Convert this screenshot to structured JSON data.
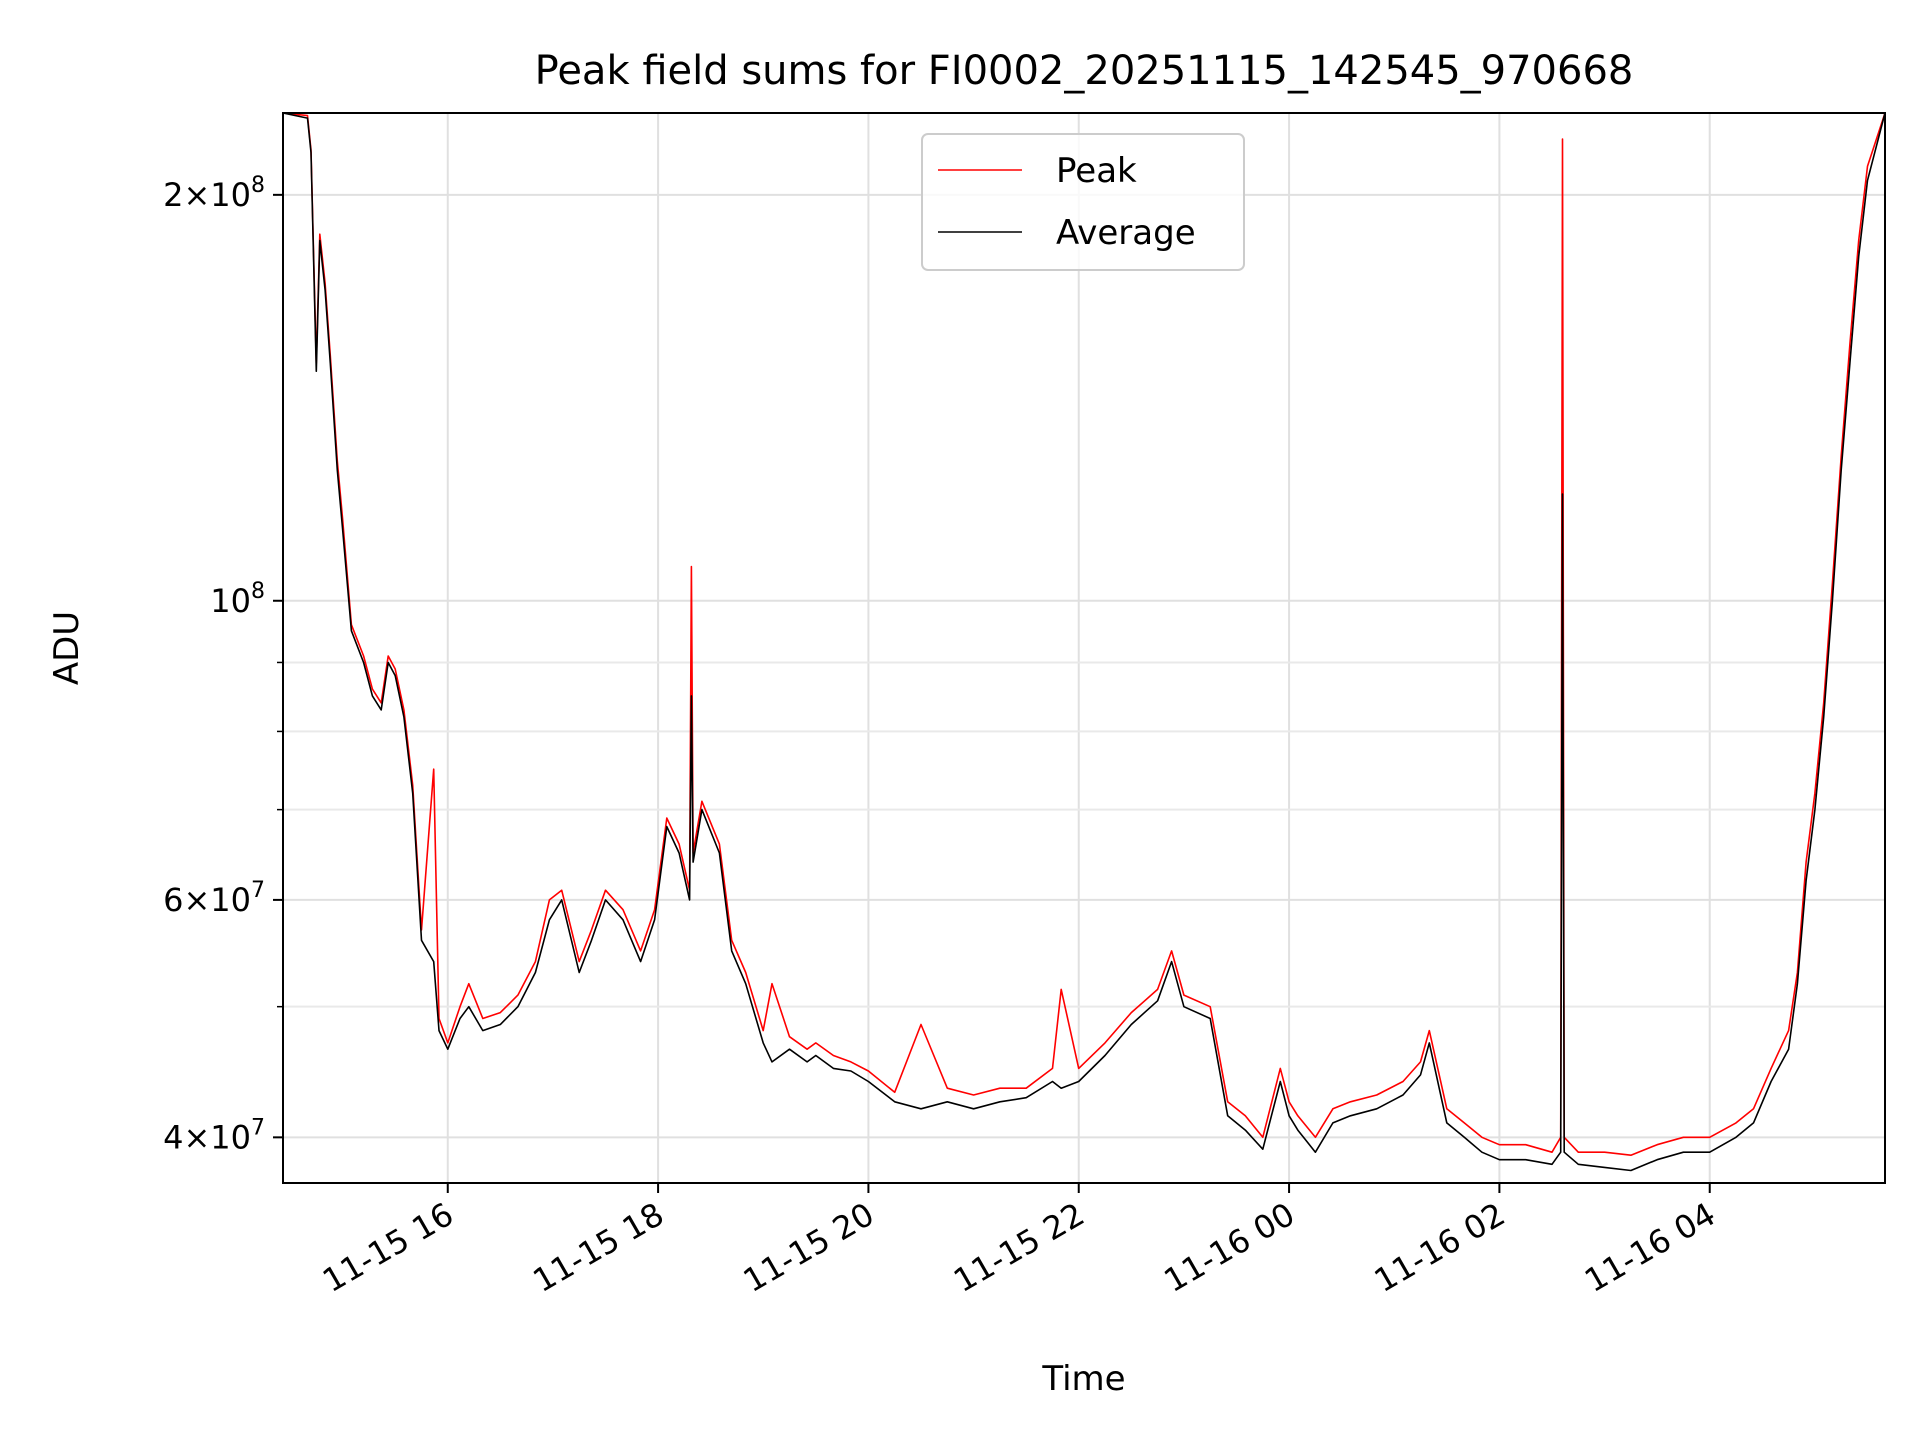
{
  "chart_data": {
    "type": "line",
    "title": "Peak field sums for FI0002_20251115_142545_970668",
    "xlabel": "Time",
    "ylabel": "ADU",
    "yscale": "log",
    "ylim": [
      37000000,
      230000000
    ],
    "xlim": [
      "2025-11-15T14:26",
      "2025-11-16T05:40"
    ],
    "grid": true,
    "legend_placement": "upper center",
    "x_ticks": [
      {
        "value": "2025-11-15T16:00",
        "label": "11-15 16"
      },
      {
        "value": "2025-11-15T18:00",
        "label": "11-15 18"
      },
      {
        "value": "2025-11-15T20:00",
        "label": "11-15 20"
      },
      {
        "value": "2025-11-15T22:00",
        "label": "11-15 22"
      },
      {
        "value": "2025-11-16T00:00",
        "label": "11-16 00"
      },
      {
        "value": "2025-11-16T02:00",
        "label": "11-16 02"
      },
      {
        "value": "2025-11-16T04:00",
        "label": "11-16 04"
      }
    ],
    "y_ticks": [
      {
        "value": 40000000,
        "base": "4",
        "exp": "7"
      },
      {
        "value": 60000000,
        "base": "6",
        "exp": "7"
      },
      {
        "value": 100000000,
        "base": "",
        "exp": "8"
      },
      {
        "value": 200000000,
        "base": "2",
        "exp": "8"
      }
    ],
    "y_minor_ticks": [
      50000000,
      70000000,
      80000000,
      90000000
    ],
    "series": [
      {
        "name": "Peak",
        "color": "#ff0000"
      },
      {
        "name": "Average",
        "color": "#000000"
      }
    ],
    "x": [
      "2025-11-15T14:26",
      "2025-11-15T14:40",
      "2025-11-15T14:42",
      "2025-11-15T14:45",
      "2025-11-15T14:47",
      "2025-11-15T14:50",
      "2025-11-15T14:53",
      "2025-11-15T14:57",
      "2025-11-15T15:00",
      "2025-11-15T15:05",
      "2025-11-15T15:12",
      "2025-11-15T15:17",
      "2025-11-15T15:22",
      "2025-11-15T15:26",
      "2025-11-15T15:30",
      "2025-11-15T15:35",
      "2025-11-15T15:40",
      "2025-11-15T15:45",
      "2025-11-15T15:52",
      "2025-11-15T15:55",
      "2025-11-15T16:00",
      "2025-11-15T16:07",
      "2025-11-15T16:12",
      "2025-11-15T16:20",
      "2025-11-15T16:30",
      "2025-11-15T16:40",
      "2025-11-15T16:50",
      "2025-11-15T16:58",
      "2025-11-15T17:05",
      "2025-11-15T17:15",
      "2025-11-15T17:22",
      "2025-11-15T17:30",
      "2025-11-15T17:40",
      "2025-11-15T17:50",
      "2025-11-15T17:58",
      "2025-11-15T18:05",
      "2025-11-15T18:12",
      "2025-11-15T18:18",
      "2025-11-15T18:19",
      "2025-11-15T18:20",
      "2025-11-15T18:25",
      "2025-11-15T18:35",
      "2025-11-15T18:42",
      "2025-11-15T18:50",
      "2025-11-15T19:00",
      "2025-11-15T19:05",
      "2025-11-15T19:15",
      "2025-11-15T19:25",
      "2025-11-15T19:30",
      "2025-11-15T19:40",
      "2025-11-15T19:50",
      "2025-11-15T20:00",
      "2025-11-15T20:15",
      "2025-11-15T20:30",
      "2025-11-15T20:45",
      "2025-11-15T21:00",
      "2025-11-15T21:15",
      "2025-11-15T21:30",
      "2025-11-15T21:45",
      "2025-11-15T21:50",
      "2025-11-15T22:00",
      "2025-11-15T22:15",
      "2025-11-15T22:30",
      "2025-11-15T22:45",
      "2025-11-15T22:53",
      "2025-11-15T23:00",
      "2025-11-15T23:15",
      "2025-11-15T23:25",
      "2025-11-15T23:35",
      "2025-11-15T23:45",
      "2025-11-15T23:55",
      "2025-11-16T00:00",
      "2025-11-16T00:05",
      "2025-11-16T00:15",
      "2025-11-16T00:25",
      "2025-11-16T00:35",
      "2025-11-16T00:50",
      "2025-11-16T01:05",
      "2025-11-16T01:15",
      "2025-11-16T01:20",
      "2025-11-16T01:30",
      "2025-11-16T01:40",
      "2025-11-16T01:50",
      "2025-11-16T02:00",
      "2025-11-16T02:15",
      "2025-11-16T02:30",
      "2025-11-16T02:35",
      "2025-11-16T02:36",
      "2025-11-16T02:37",
      "2025-11-16T02:45",
      "2025-11-16T03:00",
      "2025-11-16T03:15",
      "2025-11-16T03:30",
      "2025-11-16T03:45",
      "2025-11-16T04:00",
      "2025-11-16T04:15",
      "2025-11-16T04:25",
      "2025-11-16T04:35",
      "2025-11-16T04:45",
      "2025-11-16T04:50",
      "2025-11-16T04:55",
      "2025-11-16T05:00",
      "2025-11-16T05:05",
      "2025-11-16T05:10",
      "2025-11-16T05:15",
      "2025-11-16T05:20",
      "2025-11-16T05:25",
      "2025-11-16T05:30",
      "2025-11-16T05:40"
    ],
    "average": [
      230000000,
      228000000,
      215000000,
      148000000,
      185000000,
      170000000,
      150000000,
      125000000,
      113000000,
      95000000,
      90000000,
      85000000,
      83000000,
      90000000,
      88000000,
      82000000,
      72000000,
      56000000,
      54000000,
      48000000,
      46500000,
      49000000,
      50000000,
      48000000,
      48500000,
      50000000,
      53000000,
      58000000,
      60000000,
      53000000,
      56000000,
      60000000,
      58000000,
      54000000,
      58000000,
      68000000,
      65000000,
      60000000,
      85000000,
      64000000,
      70000000,
      65000000,
      55000000,
      52000000,
      47000000,
      45500000,
      46500000,
      45500000,
      46000000,
      45000000,
      44800000,
      44000000,
      42500000,
      42000000,
      42500000,
      42000000,
      42500000,
      42800000,
      44000000,
      43500000,
      44000000,
      46000000,
      48500000,
      50500000,
      54000000,
      50000000,
      49000000,
      41500000,
      40500000,
      39200000,
      44000000,
      41500000,
      40500000,
      39000000,
      41000000,
      41500000,
      42000000,
      43000000,
      44500000,
      47000000,
      41000000,
      40000000,
      39000000,
      38500000,
      38500000,
      38200000,
      39000000,
      120000000,
      39000000,
      38200000,
      38000000,
      37800000,
      38500000,
      39000000,
      39000000,
      40000000,
      41000000,
      44000000,
      46500000,
      52000000,
      62000000,
      70000000,
      82000000,
      100000000,
      125000000,
      150000000,
      180000000,
      205000000,
      230000000
    ],
    "peak": [
      231000000,
      229000000,
      216000000,
      150000000,
      187000000,
      172000000,
      152000000,
      127000000,
      115000000,
      96000000,
      91000000,
      86000000,
      84000000,
      91000000,
      89000000,
      83000000,
      73000000,
      57000000,
      75000000,
      49000000,
      47000000,
      50000000,
      52000000,
      49000000,
      49500000,
      51000000,
      54000000,
      60000000,
      61000000,
      54000000,
      57000000,
      61000000,
      59000000,
      55000000,
      59000000,
      69000000,
      66000000,
      61000000,
      106000000,
      65000000,
      71000000,
      66000000,
      56000000,
      53000000,
      48000000,
      52000000,
      47500000,
      46500000,
      47000000,
      46000000,
      45500000,
      44800000,
      43200000,
      48500000,
      43500000,
      43000000,
      43500000,
      43500000,
      45000000,
      51500000,
      45000000,
      47000000,
      49500000,
      51500000,
      55000000,
      51000000,
      50000000,
      42500000,
      41500000,
      40000000,
      45000000,
      42500000,
      41500000,
      40000000,
      42000000,
      42500000,
      43000000,
      44000000,
      45500000,
      48000000,
      42000000,
      41000000,
      40000000,
      39500000,
      39500000,
      39000000,
      40000000,
      220000000,
      40000000,
      39000000,
      39000000,
      38800000,
      39500000,
      40000000,
      40000000,
      41000000,
      42000000,
      45000000,
      48000000,
      53000000,
      64000000,
      72000000,
      84000000,
      103000000,
      128000000,
      155000000,
      185000000,
      210000000,
      232000000
    ]
  }
}
